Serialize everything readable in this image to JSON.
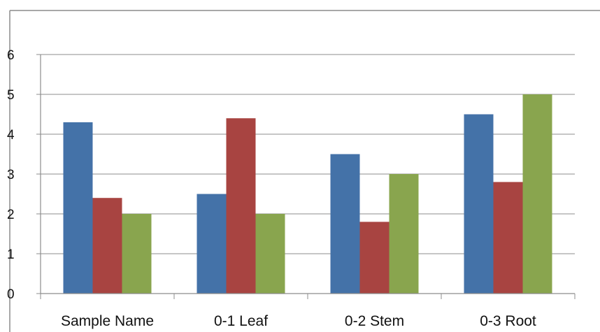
{
  "chart_data": {
    "type": "bar",
    "categories": [
      "Sample Name",
      "0-1  Leaf",
      "0-2 Stem",
      "0-3 Root"
    ],
    "series": [
      {
        "values": [
          4.3,
          2.5,
          3.5,
          4.5
        ],
        "color": "#4472A8"
      },
      {
        "values": [
          2.4,
          4.4,
          1.8,
          2.8
        ],
        "color": "#A84441"
      },
      {
        "values": [
          2.0,
          2.0,
          3.0,
          5.0
        ],
        "color": "#89A54E"
      }
    ],
    "ylim": [
      0,
      6
    ],
    "yticks": [
      "0",
      "1",
      "2",
      "3",
      "4",
      "5",
      "6"
    ],
    "grid": true,
    "legend": "none",
    "title": "",
    "xlabel": "",
    "ylabel": ""
  }
}
